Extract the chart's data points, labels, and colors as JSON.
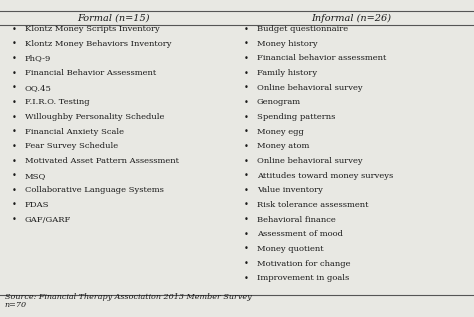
{
  "title_left": "Formal (n=15)",
  "title_right": "Informal (n=26)",
  "formal_items": [
    "Klontz Money Scripts Inventory",
    "Klontz Money Behaviors Inventory",
    "PhQ-9",
    "Financial Behavior Assessment",
    "OQ.45",
    "F.I.R.O. Testing",
    "Willoughby Personality Schedule",
    "Financial Anxiety Scale",
    "Fear Survey Schedule",
    "Motivated Asset Pattern Assessment",
    "MSQ",
    "Collaborative Language Systems",
    "FDAS",
    "GAF/GARF"
  ],
  "informal_items": [
    "Budget questionnaire",
    "Money history",
    "Financial behavior assessment",
    "Family history",
    "Online behavioral survey",
    "Genogram",
    "Spending patterns",
    "Money egg",
    "Money atom",
    "Online behavioral survey",
    "Attitudes toward money surveys",
    "Value inventory",
    "Risk tolerance assessment",
    "Behavioral finance",
    "Assessment of mood",
    "Money quotient",
    "Motivation for change",
    "Improvement in goals"
  ],
  "footnote_line1": "Source: Financial Therapy Association 2013 Member Survey",
  "footnote_line2": "n=70",
  "bg_color": "#e8e8e3",
  "text_color": "#1a1a1a",
  "header_fontsize": 7.0,
  "body_fontsize": 6.0,
  "footnote_fontsize": 5.8,
  "line_color": "#555555"
}
